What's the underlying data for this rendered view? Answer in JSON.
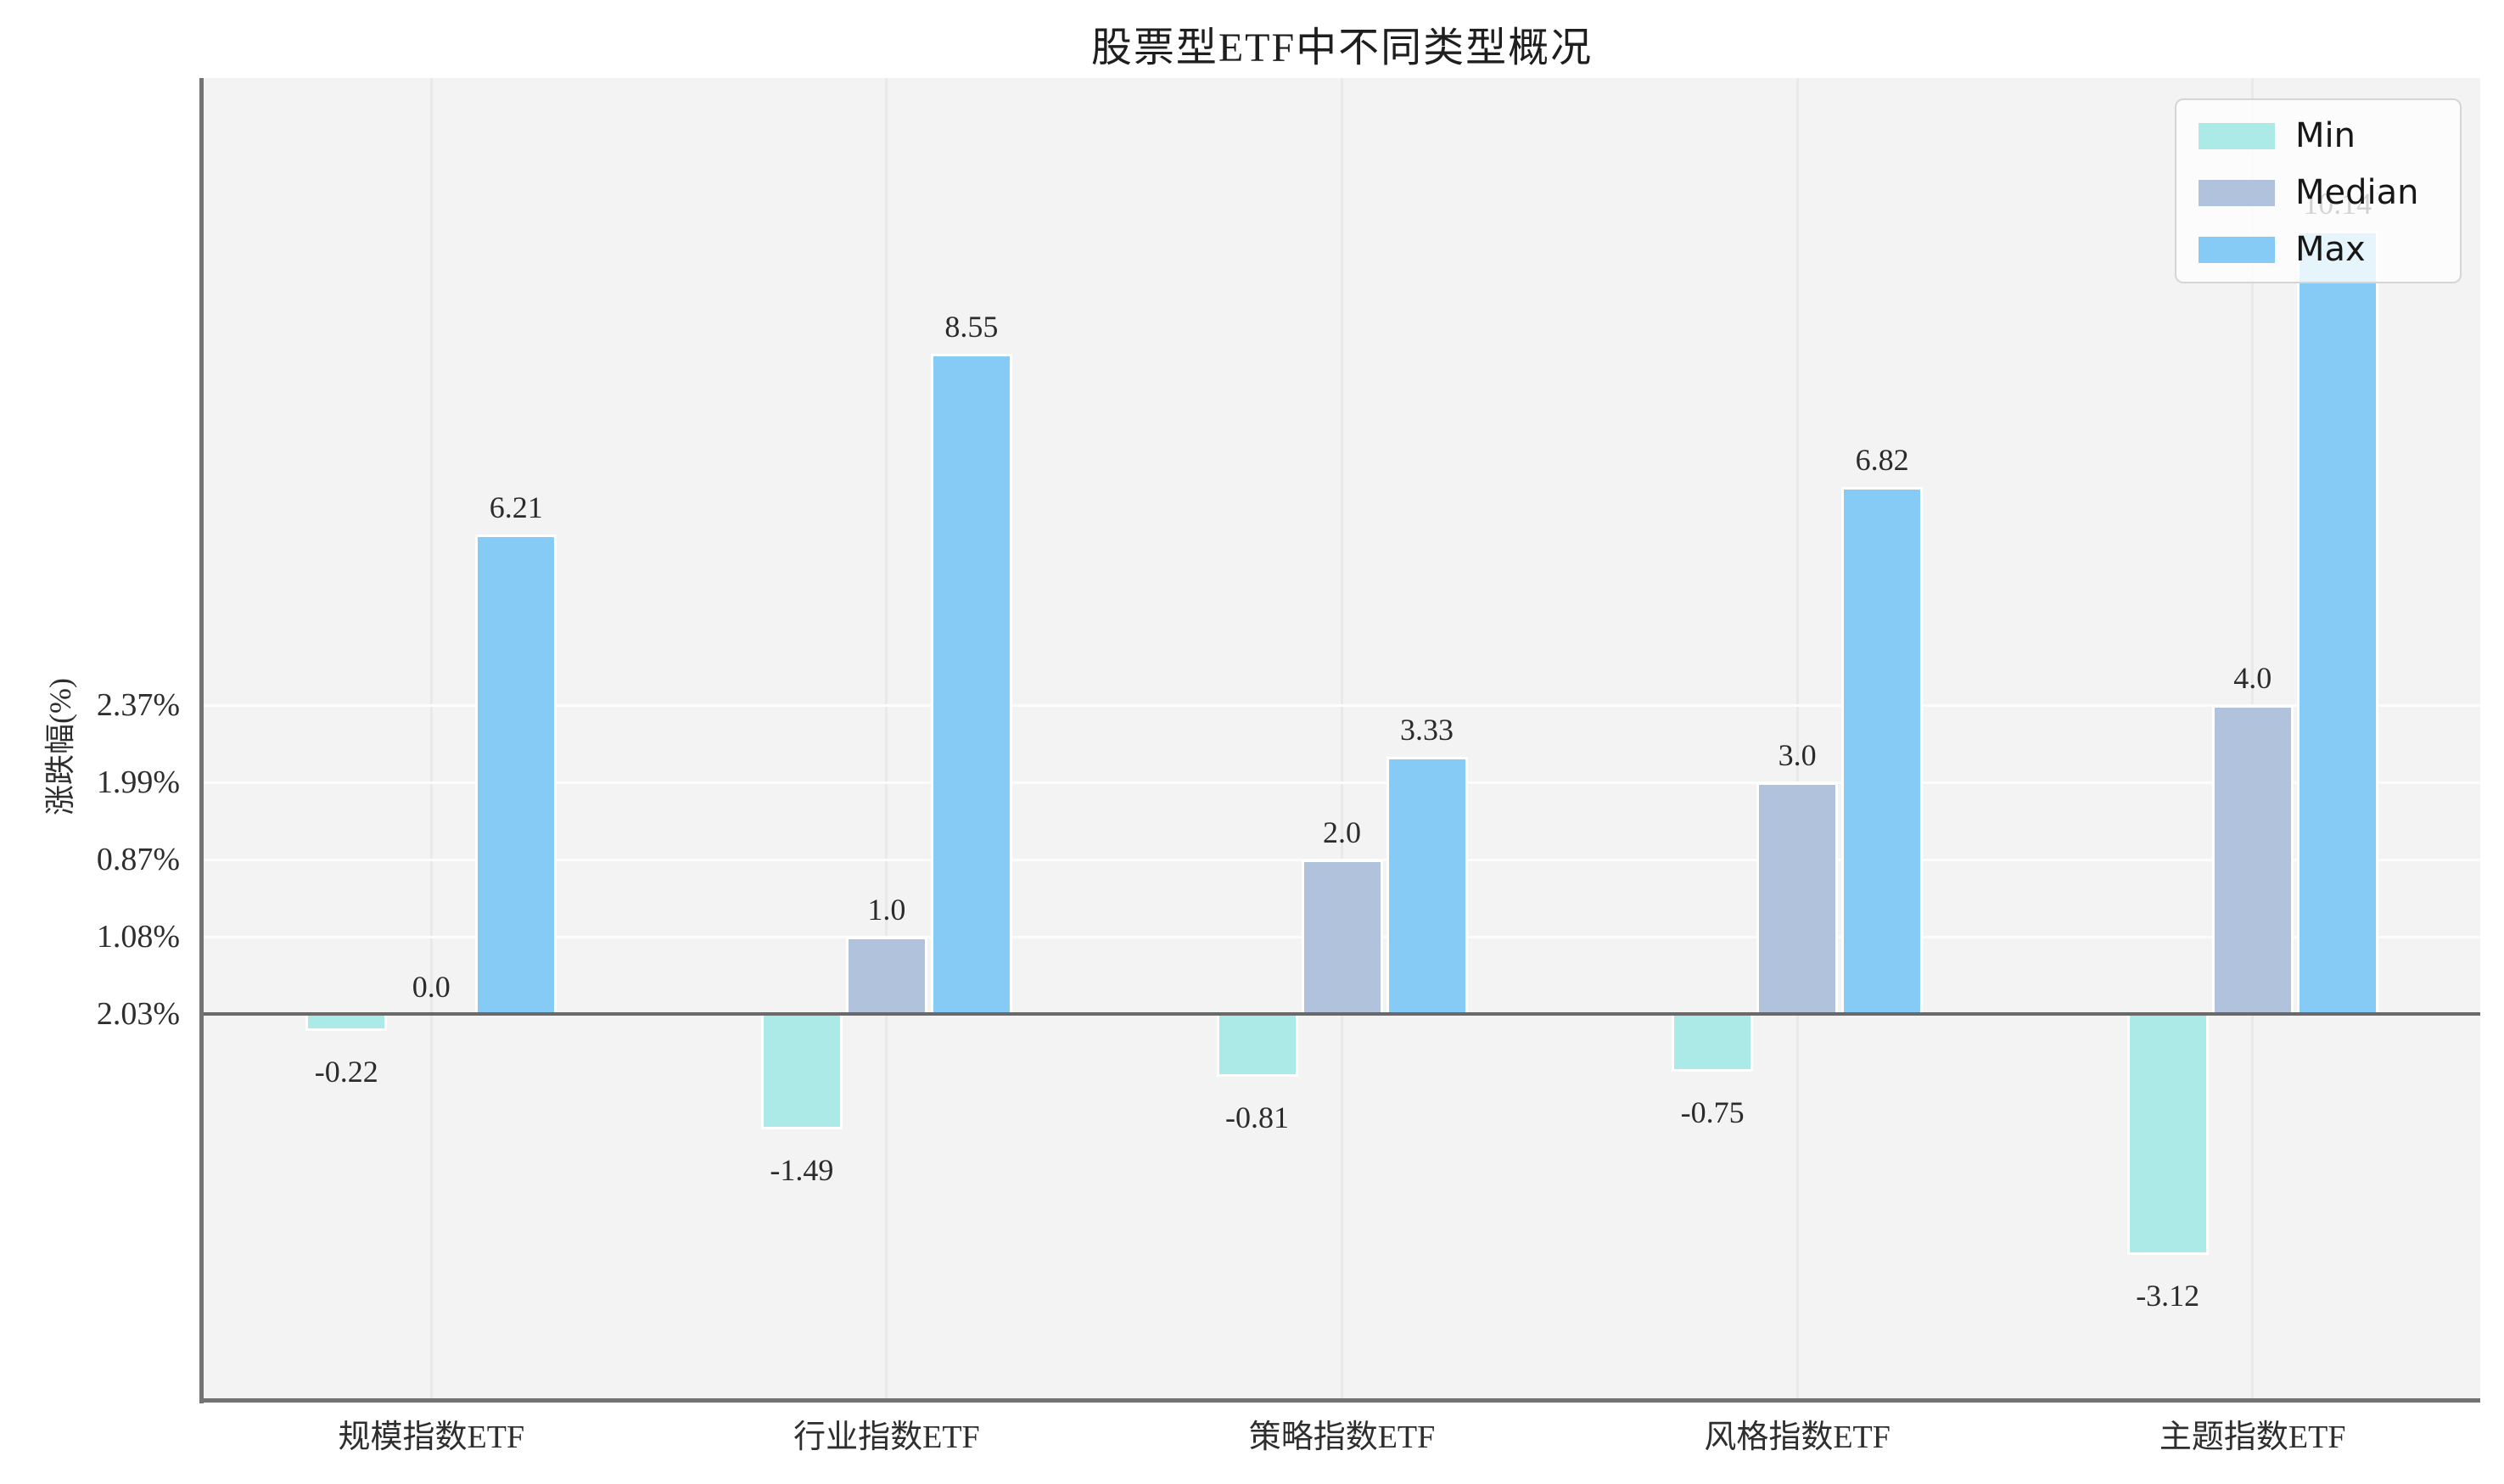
{
  "title": "股票型ETF中不同类型概况",
  "chart_data": {
    "type": "bar",
    "title": "股票型ETF中不同类型概况",
    "xlabel": "",
    "ylabel": "涨跌幅(%)",
    "categories": [
      "规模指数ETF",
      "行业指数ETF",
      "策略指数ETF",
      "风格指数ETF",
      "主题指数ETF"
    ],
    "series": [
      {
        "name": "Min",
        "color": "#abeae6",
        "values": [
          -0.22,
          -1.49,
          -0.81,
          -0.75,
          -3.12
        ],
        "labels": [
          "-0.22",
          "-1.49",
          "-0.81",
          "-0.75",
          "-3.12"
        ]
      },
      {
        "name": "Median",
        "color": "#b1c3dc",
        "values": [
          0.0,
          1.0,
          2.0,
          3.0,
          4.0
        ],
        "labels": [
          "0.0",
          "1.0",
          "2.0",
          "3.0",
          "4.0"
        ]
      },
      {
        "name": "Max",
        "color": "#86cbf5",
        "values": [
          6.21,
          8.55,
          3.33,
          6.82,
          10.14
        ],
        "labels": [
          "6.21",
          "8.55",
          "3.33",
          "6.82",
          "10.14"
        ]
      }
    ],
    "ytick_values": [
      0,
      1,
      2,
      3,
      4
    ],
    "ytick_labels": [
      "2.03%",
      "1.08%",
      "0.87%",
      "1.99%",
      "2.37%"
    ],
    "ylim": [
      -5.0,
      12.1
    ],
    "grid": true,
    "legend_position": "upper right",
    "legend_entries": [
      "Min",
      "Median",
      "Max"
    ],
    "plot_bg_color": "#f3f3f3",
    "zero_line_color": "#696969"
  }
}
